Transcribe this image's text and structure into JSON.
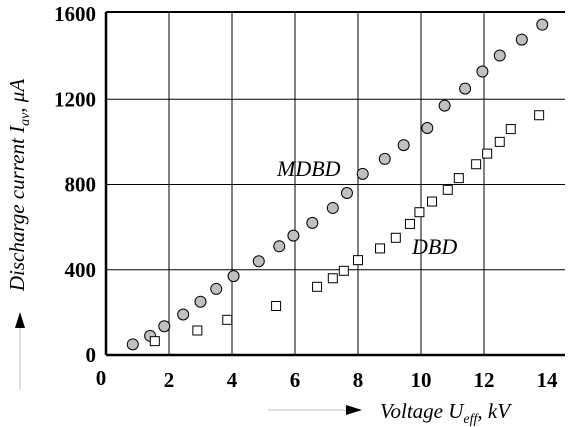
{
  "chart_data": {
    "type": "scatter",
    "xlabel": {
      "prefix": "Voltage U",
      "sub": "eff",
      "suffix": ", kV"
    },
    "ylabel": {
      "prefix": "Discharge current I",
      "sub": "av",
      "suffix": ", μA"
    },
    "xlim": [
      0,
      14
    ],
    "ylim": [
      0,
      1600
    ],
    "xticks": [
      "0",
      "2",
      "4",
      "6",
      "8",
      "10",
      "12",
      "14"
    ],
    "yticks": [
      "0",
      "400",
      "800",
      "1200",
      "1600"
    ],
    "grid": true,
    "series": [
      {
        "name": "MDBD",
        "marker": "circle",
        "color": "#c0c0c0",
        "points": [
          [
            0.85,
            50
          ],
          [
            1.4,
            90
          ],
          [
            1.85,
            135
          ],
          [
            2.45,
            190
          ],
          [
            3.0,
            250
          ],
          [
            3.5,
            310
          ],
          [
            4.05,
            370
          ],
          [
            4.85,
            440
          ],
          [
            5.5,
            510
          ],
          [
            5.95,
            560
          ],
          [
            6.55,
            620
          ],
          [
            7.2,
            690
          ],
          [
            7.65,
            760
          ],
          [
            8.15,
            850
          ],
          [
            8.85,
            920
          ],
          [
            9.45,
            985
          ],
          [
            10.2,
            1065
          ],
          [
            10.75,
            1170
          ],
          [
            11.4,
            1250
          ],
          [
            11.95,
            1330
          ],
          [
            12.5,
            1405
          ],
          [
            13.2,
            1480
          ],
          [
            13.85,
            1550
          ]
        ]
      },
      {
        "name": "DBD",
        "marker": "square",
        "color": "#ffffff",
        "points": [
          [
            1.55,
            65
          ],
          [
            2.9,
            115
          ],
          [
            3.85,
            165
          ],
          [
            5.4,
            230
          ],
          [
            6.7,
            320
          ],
          [
            7.2,
            360
          ],
          [
            7.55,
            395
          ],
          [
            8.0,
            445
          ],
          [
            8.7,
            500
          ],
          [
            9.2,
            550
          ],
          [
            9.65,
            615
          ],
          [
            9.95,
            670
          ],
          [
            10.35,
            720
          ],
          [
            10.85,
            775
          ],
          [
            11.2,
            830
          ],
          [
            11.75,
            895
          ],
          [
            12.1,
            945
          ],
          [
            12.5,
            1000
          ],
          [
            12.85,
            1060
          ],
          [
            13.75,
            1125
          ]
        ]
      }
    ],
    "annotations": [
      "MDBD",
      "DBD"
    ]
  }
}
